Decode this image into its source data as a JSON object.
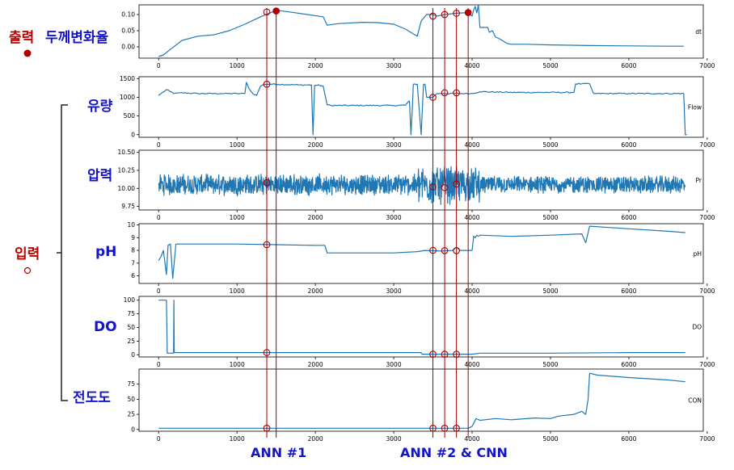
{
  "labels": {
    "output": "출력",
    "output_name": "두께변화율",
    "input": "입력",
    "inputs": [
      "유량",
      "압력",
      "pH",
      "DO",
      "전도도"
    ],
    "ann1": "ANN #1",
    "ann2": "ANN #2 & CNN"
  },
  "colors": {
    "line": "#1f77b4",
    "marker": "#b00000",
    "label_red": "#c00000",
    "label_blue": "#1414c8",
    "axis": "#000000"
  },
  "chart_data": [
    {
      "type": "line",
      "series_label": "dt",
      "xlim": [
        -250,
        6950
      ],
      "xticks": [
        0,
        1000,
        2000,
        3000,
        4000,
        5000,
        6000,
        7000
      ],
      "ylim": [
        -0.035,
        0.13
      ],
      "yticks": [
        0.0,
        0.05,
        0.1
      ],
      "yticklabels": [
        "0.00",
        "0.05",
        "0.10"
      ],
      "x": [
        0,
        60,
        150,
        300,
        500,
        700,
        900,
        1100,
        1300,
        1450,
        1550,
        1700,
        1900,
        2100,
        2150,
        2300,
        2600,
        2800,
        3000,
        3150,
        3250,
        3300,
        3350,
        3420,
        3500,
        3550,
        3650,
        3800,
        3950,
        4000,
        4020,
        4040,
        4060,
        4080,
        4100,
        4200,
        4220,
        4260,
        4300,
        4350,
        4450,
        4500,
        4700,
        5000,
        5500,
        6000,
        6500,
        6700
      ],
      "y": [
        -0.03,
        -0.025,
        -0.008,
        0.02,
        0.033,
        0.037,
        0.05,
        0.07,
        0.093,
        0.108,
        0.112,
        0.107,
        0.1,
        0.093,
        0.067,
        0.072,
        0.076,
        0.075,
        0.07,
        0.055,
        0.04,
        0.033,
        0.08,
        0.1,
        0.1,
        0.095,
        0.1,
        0.104,
        0.106,
        0.095,
        0.115,
        0.125,
        0.105,
        0.13,
        0.06,
        0.06,
        0.045,
        0.05,
        0.03,
        0.025,
        0.01,
        0.008,
        0.008,
        0.006,
        0.004,
        0.003,
        0.002,
        0.002
      ],
      "markers": {
        "x": [
          1380,
          1500,
          3500,
          3650,
          3800,
          3950
        ],
        "y": [
          0.108,
          0.111,
          0.095,
          0.1,
          0.104,
          0.106
        ],
        "filled": [
          false,
          true,
          false,
          false,
          false,
          true
        ]
      }
    },
    {
      "type": "line",
      "series_label": "Flow",
      "xlim": [
        -250,
        6950
      ],
      "xticks": [
        0,
        1000,
        2000,
        3000,
        4000,
        5000,
        6000,
        7000
      ],
      "ylim": [
        -70,
        1550
      ],
      "yticks": [
        0,
        500,
        1000,
        1500
      ],
      "yticklabels": [
        "0",
        "500",
        "1000",
        "1500"
      ],
      "noise": 30,
      "x": [
        0,
        30,
        100,
        150,
        200,
        300,
        500,
        800,
        1000,
        1100,
        1120,
        1150,
        1200,
        1250,
        1300,
        1350,
        1450,
        1500,
        1800,
        1950,
        1970,
        1990,
        2000,
        2050,
        2100,
        2150,
        2200,
        2500,
        2800,
        3000,
        3150,
        3200,
        3220,
        3240,
        3250,
        3300,
        3350,
        3380,
        3400,
        3420,
        3450,
        3500,
        3550,
        3600,
        4000,
        4100,
        4500,
        5000,
        5300,
        5320,
        5400,
        5500,
        5550,
        5600,
        6000,
        6500,
        6700,
        6720,
        6740
      ],
      "y": [
        1050,
        1100,
        1200,
        1150,
        1100,
        1120,
        1100,
        1100,
        1100,
        1100,
        1400,
        1250,
        1100,
        1050,
        1300,
        1350,
        1350,
        1350,
        1330,
        1330,
        0,
        1320,
        1320,
        1320,
        1300,
        800,
        780,
        780,
        780,
        780,
        790,
        900,
        0,
        800,
        1350,
        1350,
        0,
        1350,
        1350,
        1000,
        1000,
        1000,
        1100,
        1100,
        1100,
        1150,
        1130,
        1130,
        1130,
        1360,
        1360,
        1360,
        1100,
        1100,
        1100,
        1100,
        1100,
        0,
        0
      ],
      "markers": {
        "x": [
          1380,
          3500,
          3650,
          3800
        ],
        "y": [
          1350,
          1000,
          1120,
          1120
        ],
        "filled": [
          false,
          false,
          false,
          false
        ]
      }
    },
    {
      "type": "line",
      "series_label": "Pr",
      "xlim": [
        -250,
        6950
      ],
      "xticks": [
        0,
        1000,
        2000,
        3000,
        4000,
        5000,
        6000,
        7000
      ],
      "ylim": [
        9.7,
        10.53
      ],
      "yticks": [
        9.75,
        10.0,
        10.25,
        10.5
      ],
      "yticklabels": [
        "9.75",
        "10.00",
        "10.25",
        "10.50"
      ],
      "noise_band": true,
      "x": [
        0,
        6720
      ],
      "y": [
        10.05,
        10.05
      ],
      "markers": {
        "x": [
          1380,
          3500,
          3650,
          3800
        ],
        "y": [
          10.08,
          10.02,
          10.01,
          10.06
        ],
        "filled": [
          false,
          false,
          false,
          false
        ]
      }
    },
    {
      "type": "line",
      "series_label": "pH",
      "xlim": [
        -250,
        6950
      ],
      "xticks": [
        0,
        1000,
        2000,
        3000,
        4000,
        5000,
        6000,
        7000
      ],
      "ylim": [
        5.4,
        10.1
      ],
      "yticks": [
        6,
        7,
        8,
        9,
        10
      ],
      "yticklabels": [
        "6",
        "7",
        "8",
        "9",
        "10"
      ],
      "x": [
        0,
        30,
        60,
        100,
        120,
        150,
        180,
        220,
        250,
        300,
        600,
        1000,
        1500,
        2000,
        2120,
        2150,
        2500,
        3000,
        3300,
        3400,
        3600,
        3750,
        3800,
        3850,
        4000,
        4020,
        4040,
        4060,
        4080,
        4100,
        4500,
        5000,
        5400,
        5450,
        5500,
        6000,
        6500,
        6720
      ],
      "y": [
        7.2,
        7.5,
        8.0,
        6.1,
        8.4,
        8.5,
        5.8,
        8.5,
        8.5,
        8.5,
        8.5,
        8.5,
        8.45,
        8.4,
        8.4,
        7.8,
        7.8,
        7.8,
        7.9,
        8.0,
        7.95,
        8.0,
        8.25,
        8.0,
        8.0,
        9.1,
        9.0,
        9.2,
        9.1,
        9.2,
        9.1,
        9.2,
        9.3,
        8.6,
        9.9,
        9.7,
        9.5,
        9.4
      ],
      "markers": {
        "x": [
          1380,
          3500,
          3650,
          3800
        ],
        "y": [
          8.45,
          8.0,
          7.98,
          7.98
        ],
        "filled": [
          false,
          false,
          false,
          false
        ]
      }
    },
    {
      "type": "line",
      "series_label": "DO",
      "xlim": [
        -250,
        6950
      ],
      "xticks": [
        0,
        1000,
        2000,
        3000,
        4000,
        5000,
        6000,
        7000
      ],
      "ylim": [
        -4,
        107
      ],
      "yticks": [
        0,
        25,
        50,
        75,
        100
      ],
      "yticklabels": [
        "0",
        "25",
        "50",
        "75",
        "100"
      ],
      "x": [
        0,
        100,
        110,
        190,
        195,
        200,
        205,
        215,
        1000,
        2000,
        3000,
        3350,
        3360,
        4000,
        4100,
        5000,
        6000,
        6720
      ],
      "y": [
        100,
        100,
        3,
        3,
        100,
        5,
        4,
        4,
        4,
        4,
        4,
        4,
        1,
        1,
        3,
        3,
        4,
        4
      ],
      "markers": {
        "x": [
          1380,
          3500,
          3650,
          3800
        ],
        "y": [
          4,
          1,
          1,
          1
        ],
        "filled": [
          false,
          false,
          false,
          false
        ]
      }
    },
    {
      "type": "line",
      "series_label": "CON",
      "xlim": [
        -250,
        6950
      ],
      "xticks": [
        0,
        1000,
        2000,
        3000,
        4000,
        5000,
        6000,
        7000
      ],
      "ylim": [
        -3,
        100
      ],
      "yticks": [
        0,
        25,
        50,
        75
      ],
      "yticklabels": [
        "0",
        "25",
        "50",
        "75"
      ],
      "x": [
        0,
        500,
        1000,
        2000,
        3000,
        3500,
        3950,
        4000,
        4050,
        4100,
        4300,
        4500,
        4800,
        5000,
        5100,
        5300,
        5400,
        5450,
        5480,
        5500,
        5600,
        6000,
        6500,
        6720
      ],
      "y": [
        2,
        2,
        2,
        2,
        2,
        2,
        2,
        5,
        18,
        15,
        18,
        16,
        19,
        18,
        22,
        25,
        30,
        25,
        50,
        93,
        90,
        86,
        82,
        79
      ],
      "markers": {
        "x": [
          1380,
          3500,
          3650,
          3800
        ],
        "y": [
          2,
          2,
          2,
          2
        ],
        "filled": [
          false,
          false,
          false,
          false
        ]
      }
    }
  ],
  "vlines_x": [
    1380,
    1500,
    3500,
    3650,
    3800,
    3950
  ]
}
